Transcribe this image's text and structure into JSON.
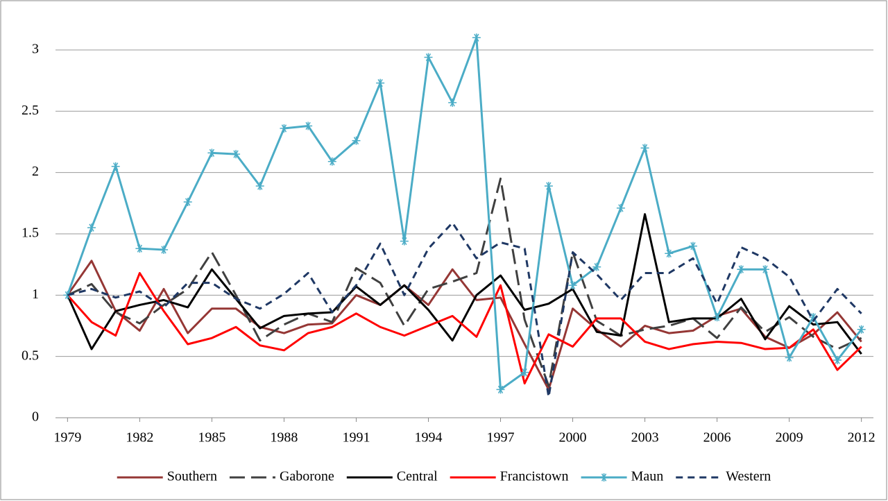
{
  "chart_data": {
    "type": "line",
    "x": [
      1979,
      1980,
      1981,
      1982,
      1983,
      1984,
      1985,
      1986,
      1987,
      1988,
      1989,
      1990,
      1991,
      1992,
      1993,
      1994,
      1995,
      1996,
      1997,
      1998,
      1999,
      2000,
      2001,
      2002,
      2003,
      2004,
      2005,
      2006,
      2007,
      2008,
      2009,
      2010,
      2011,
      2012
    ],
    "xlim": [
      1978.5,
      2012.5
    ],
    "xticks": [
      1979,
      1982,
      1985,
      1988,
      1991,
      1994,
      1997,
      2000,
      2003,
      2006,
      2009,
      2012
    ],
    "ylim": [
      0,
      3.2
    ],
    "yticks": [
      0,
      0.5,
      1,
      1.5,
      2,
      2.5,
      3
    ],
    "grid": true,
    "legend": "bottom",
    "series": [
      {
        "name": "Southern",
        "color": "#953735",
        "dash": "solid",
        "values": [
          1.0,
          1.28,
          0.87,
          0.71,
          1.05,
          0.69,
          0.89,
          0.89,
          0.74,
          0.69,
          0.76,
          0.77,
          1.0,
          0.92,
          1.08,
          0.92,
          1.21,
          0.96,
          0.98,
          0.6,
          0.23,
          0.89,
          0.72,
          0.58,
          0.75,
          0.69,
          0.71,
          0.83,
          0.89,
          0.66,
          0.57,
          0.68,
          0.86,
          0.62
        ]
      },
      {
        "name": "Gaborone",
        "color": "#404040",
        "dash": "long-dash",
        "values": [
          1.0,
          1.09,
          0.86,
          0.77,
          0.92,
          1.05,
          1.35,
          1.0,
          0.63,
          0.76,
          0.85,
          0.78,
          1.22,
          1.1,
          0.75,
          1.05,
          1.11,
          1.18,
          1.95,
          0.8,
          0.26,
          1.35,
          0.79,
          0.67,
          0.72,
          0.75,
          0.81,
          0.65,
          0.9,
          0.7,
          0.82,
          0.66,
          0.56,
          0.65
        ]
      },
      {
        "name": "Central",
        "color": "#000000",
        "dash": "solid",
        "values": [
          1.0,
          0.56,
          0.87,
          0.92,
          0.96,
          0.9,
          1.21,
          0.97,
          0.73,
          0.83,
          0.85,
          0.86,
          1.07,
          0.92,
          1.08,
          0.88,
          0.63,
          1.0,
          1.16,
          0.88,
          0.93,
          1.05,
          0.7,
          0.67,
          1.66,
          0.78,
          0.81,
          0.81,
          0.97,
          0.64,
          0.91,
          0.76,
          0.78,
          0.52
        ]
      },
      {
        "name": "Francistown",
        "color": "#ff0000",
        "dash": "solid",
        "values": [
          1.0,
          0.78,
          0.67,
          1.18,
          0.87,
          0.6,
          0.65,
          0.74,
          0.59,
          0.55,
          0.69,
          0.74,
          0.85,
          0.74,
          0.67,
          0.75,
          0.83,
          0.66,
          1.08,
          0.28,
          0.68,
          0.58,
          0.81,
          0.81,
          0.62,
          0.56,
          0.6,
          0.62,
          0.61,
          0.56,
          0.57,
          0.72,
          0.39,
          0.58
        ]
      },
      {
        "name": "Maun",
        "color": "#4bacc6",
        "dash": "solid",
        "marker": "asterisk",
        "values": [
          1.0,
          1.55,
          2.05,
          1.38,
          1.37,
          1.76,
          2.16,
          2.15,
          1.89,
          2.36,
          2.38,
          2.09,
          2.26,
          2.73,
          1.44,
          2.94,
          2.57,
          3.1,
          0.23,
          0.37,
          1.89,
          1.08,
          1.23,
          1.71,
          2.2,
          1.34,
          1.4,
          0.82,
          1.21,
          1.21,
          0.49,
          0.82,
          0.47,
          0.72
        ]
      },
      {
        "name": "Western",
        "color": "#1f3864",
        "dash": "dash",
        "values": [
          1.0,
          1.05,
          0.98,
          1.03,
          0.9,
          1.1,
          1.1,
          0.97,
          0.89,
          1.01,
          1.18,
          0.86,
          1.08,
          1.42,
          1.0,
          1.38,
          1.59,
          1.3,
          1.43,
          1.38,
          0.17,
          1.35,
          1.17,
          0.96,
          1.18,
          1.18,
          1.3,
          0.93,
          1.39,
          1.3,
          1.15,
          0.79,
          1.05,
          0.85
        ]
      }
    ]
  }
}
